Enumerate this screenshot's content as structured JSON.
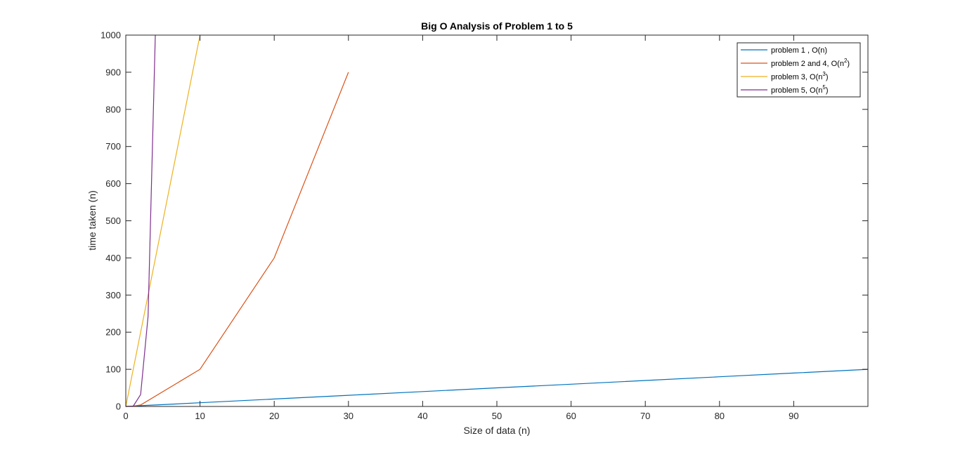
{
  "chart_data": {
    "type": "line",
    "title": "Big O Analysis of Problem 1 to 5",
    "xlabel": "Size of data (n)",
    "ylabel": "time taken (n)",
    "xlim": [
      0,
      100
    ],
    "ylim": [
      0,
      1000
    ],
    "xticks": [
      0,
      10,
      20,
      30,
      40,
      50,
      60,
      70,
      80,
      90
    ],
    "yticks": [
      0,
      100,
      200,
      300,
      400,
      500,
      600,
      700,
      800,
      900,
      1000
    ],
    "grid": false,
    "legend_position": "top-right",
    "series": [
      {
        "name": "problem 1 , O(n)",
        "legend_base": "problem 1 , O(n)",
        "legend_sup": "",
        "legend_tail": "",
        "color": "#0072BD",
        "x": [
          0,
          1,
          2,
          3,
          4,
          5,
          10,
          20,
          30,
          40,
          50,
          60,
          70,
          80,
          90,
          100
        ],
        "y": [
          0,
          1,
          2,
          3,
          4,
          5,
          10,
          20,
          30,
          40,
          50,
          60,
          70,
          80,
          90,
          100
        ]
      },
      {
        "name": "problem 2 and 4, O(n2)",
        "legend_base": "problem 2 and 4, O(n",
        "legend_sup": "2",
        "legend_tail": ")",
        "color": "#D95319",
        "x": [
          0,
          1,
          2,
          10,
          20,
          30
        ],
        "y": [
          0,
          1,
          4,
          100,
          400,
          900
        ]
      },
      {
        "name": "problem 3, O(n3)",
        "legend_base": "problem 3, O(n",
        "legend_sup": "3",
        "legend_tail": ")",
        "color": "#EDB120",
        "x": [
          0,
          10
        ],
        "y": [
          0,
          1000
        ]
      },
      {
        "name": "problem 5, O(n5)",
        "legend_base": "problem 5, O(n",
        "legend_sup": "5",
        "legend_tail": ")",
        "color": "#7E2F8E",
        "x": [
          0,
          1,
          2,
          3,
          3.98
        ],
        "y": [
          0,
          1,
          32,
          243,
          1000
        ]
      }
    ]
  }
}
